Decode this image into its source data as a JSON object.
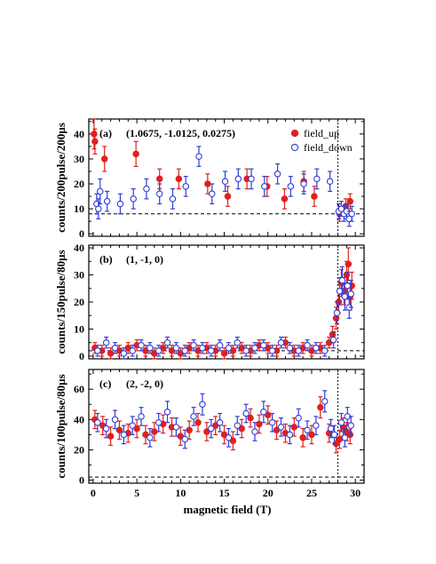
{
  "figure": {
    "xlabel": "magnetic field (T)",
    "legend": {
      "placement": "top-right of panel (a)",
      "entries": [
        {
          "name": "field_up",
          "marker": "filled-circle",
          "color": "#e0201e"
        },
        {
          "name": "field_down",
          "marker": "open-circle",
          "color": "#2e3fd8"
        }
      ]
    },
    "colors": {
      "up": "#e0201e",
      "down": "#2e3fd8",
      "frame": "#000000"
    }
  },
  "chart_data": [
    {
      "type": "scatter",
      "panel_label": "(a)",
      "hkl": "(1.0675, -1.0125, 0.0275)",
      "ylabel": "counts/200pulse/200µs",
      "xlim": [
        -0.5,
        31
      ],
      "ylim": [
        -1,
        46
      ],
      "x_ticks": [
        0,
        5,
        10,
        15,
        20,
        25,
        30
      ],
      "y_ticks": [
        0,
        10,
        20,
        30,
        40
      ],
      "background_level": 8,
      "vertical_marker_x": 28,
      "series": [
        {
          "name": "field_up",
          "filled": true,
          "x": [
            0.1,
            0.2,
            1.3,
            4.9,
            7.6,
            9.8,
            13.1,
            15.4,
            17.6,
            19.9,
            21.9,
            24.1,
            25.3,
            28.2,
            28.9,
            29.4
          ],
          "y": [
            40,
            37,
            30,
            32,
            22,
            22,
            20,
            15,
            22,
            19,
            14,
            21,
            15,
            8,
            11,
            13
          ],
          "err": [
            6,
            5,
            5,
            5,
            4,
            4,
            4,
            4,
            4,
            4,
            4,
            4,
            4,
            3,
            3,
            3
          ]
        },
        {
          "name": "field_down",
          "filled": false,
          "x": [
            0.4,
            0.6,
            0.8,
            1.6,
            3.1,
            4.6,
            6.1,
            7.6,
            9.1,
            10.6,
            12.1,
            13.6,
            15.1,
            16.6,
            18.1,
            19.6,
            21.1,
            22.6,
            24.1,
            25.6,
            27.1,
            28.1,
            28.4,
            28.7,
            29.0,
            29.3,
            29.6
          ],
          "y": [
            12,
            10,
            17,
            13,
            12,
            14,
            18,
            16,
            14,
            19,
            31,
            16,
            21,
            22,
            22,
            19,
            24,
            19,
            20,
            22,
            21,
            9,
            10,
            8,
            9,
            6,
            8
          ],
          "err": [
            4,
            4,
            5,
            4,
            4,
            4,
            4,
            4,
            4,
            4,
            4,
            4,
            4,
            4,
            4,
            4,
            4,
            4,
            4,
            4,
            4,
            3,
            3,
            3,
            3,
            3,
            3
          ]
        }
      ]
    },
    {
      "type": "scatter",
      "panel_label": "(b)",
      "hkl": "(1, -1, 0)",
      "ylabel": "counts/150pulse/80µs",
      "xlim": [
        -0.5,
        31
      ],
      "ylim": [
        -1,
        41
      ],
      "x_ticks": [
        0,
        5,
        10,
        15,
        20,
        25,
        30
      ],
      "y_ticks": [
        0,
        10,
        20,
        30,
        40
      ],
      "background_level": 2,
      "vertical_marker_x": 28,
      "series": [
        {
          "name": "field_up",
          "filled": true,
          "x": [
            0.2,
            1.0,
            2.0,
            3.0,
            4.0,
            5.0,
            6.0,
            7.0,
            8.0,
            9.0,
            10.0,
            11.0,
            12.0,
            13.0,
            14.0,
            15.0,
            16.0,
            17.0,
            18.0,
            19.0,
            20.0,
            21.0,
            22.0,
            23.0,
            24.0,
            25.0,
            26.0,
            27.0,
            27.4,
            27.8,
            28.1,
            28.4,
            28.7,
            29.0,
            29.2,
            29.4,
            29.6
          ],
          "y": [
            3,
            2,
            1,
            2,
            3,
            4,
            2,
            1,
            3,
            2,
            1,
            3,
            2,
            3,
            2,
            1,
            2,
            3,
            2,
            4,
            3,
            2,
            5,
            2,
            3,
            2,
            3,
            5,
            8,
            14,
            20,
            27,
            24,
            30,
            34,
            22,
            26
          ],
          "err": [
            2,
            2,
            2,
            2,
            2,
            2,
            2,
            2,
            2,
            2,
            2,
            2,
            2,
            2,
            2,
            2,
            2,
            2,
            2,
            2,
            2,
            2,
            2,
            2,
            2,
            2,
            2,
            2,
            3,
            4,
            4,
            5,
            5,
            5,
            6,
            5,
            5
          ]
        },
        {
          "name": "field_down",
          "filled": false,
          "x": [
            0.5,
            1.5,
            2.5,
            3.5,
            4.5,
            5.5,
            6.5,
            7.5,
            8.5,
            9.5,
            10.5,
            11.5,
            12.5,
            13.5,
            14.5,
            15.5,
            16.5,
            17.5,
            18.5,
            19.5,
            20.5,
            21.5,
            22.5,
            23.5,
            24.5,
            25.5,
            26.5,
            27.5,
            27.9,
            28.2,
            28.5,
            28.8,
            29.1,
            29.3,
            29.5
          ],
          "y": [
            2,
            5,
            3,
            1,
            2,
            4,
            3,
            2,
            5,
            3,
            2,
            4,
            3,
            2,
            4,
            3,
            5,
            2,
            3,
            4,
            2,
            5,
            3,
            2,
            4,
            3,
            2,
            6,
            16,
            24,
            28,
            22,
            26,
            18,
            23
          ],
          "err": [
            2,
            2,
            2,
            2,
            2,
            2,
            2,
            2,
            2,
            2,
            2,
            2,
            2,
            2,
            2,
            2,
            2,
            2,
            2,
            2,
            2,
            2,
            2,
            2,
            2,
            2,
            2,
            3,
            4,
            5,
            5,
            5,
            5,
            4,
            5
          ]
        }
      ]
    },
    {
      "type": "scatter",
      "panel_label": "(c)",
      "hkl": "(2, -2, 0)",
      "ylabel": "counts/100pulse/80µs",
      "xlim": [
        -0.5,
        31
      ],
      "ylim": [
        -2,
        73
      ],
      "x_ticks": [
        0,
        5,
        10,
        15,
        20,
        25,
        30
      ],
      "y_ticks": [
        0,
        20,
        40,
        60
      ],
      "background_level": 2,
      "vertical_marker_x": 28,
      "series": [
        {
          "name": "field_up",
          "filled": true,
          "x": [
            0.2,
            1.1,
            2.0,
            3.0,
            4.0,
            5.0,
            6.0,
            7.0,
            8.0,
            9.0,
            10.0,
            11.0,
            12.0,
            13.0,
            14.0,
            15.0,
            16.0,
            17.0,
            18.0,
            19.0,
            20.0,
            21.0,
            22.0,
            23.0,
            24.0,
            25.0,
            26.0,
            27.0,
            27.8,
            28.2,
            28.6,
            29.0,
            29.4
          ],
          "y": [
            40,
            36,
            29,
            33,
            31,
            34,
            30,
            32,
            37,
            35,
            29,
            33,
            38,
            32,
            36,
            30,
            26,
            34,
            41,
            37,
            43,
            33,
            31,
            35,
            28,
            30,
            48,
            31,
            24,
            27,
            35,
            32,
            30
          ],
          "err": [
            6,
            6,
            6,
            6,
            6,
            6,
            6,
            6,
            6,
            6,
            6,
            6,
            6,
            6,
            6,
            6,
            6,
            6,
            6,
            6,
            6,
            6,
            6,
            6,
            6,
            6,
            7,
            6,
            6,
            6,
            6,
            6,
            6
          ]
        },
        {
          "name": "field_down",
          "filled": false,
          "x": [
            0.5,
            1.5,
            2.5,
            3.5,
            4.5,
            5.5,
            6.5,
            7.5,
            8.5,
            9.5,
            10.5,
            11.5,
            12.5,
            13.5,
            14.5,
            15.5,
            16.5,
            17.5,
            18.5,
            19.5,
            20.5,
            21.5,
            22.5,
            23.5,
            24.5,
            25.5,
            26.5,
            27.2,
            27.6,
            28.4,
            28.8,
            29.1,
            29.5
          ],
          "y": [
            38,
            34,
            40,
            30,
            36,
            42,
            28,
            38,
            45,
            35,
            27,
            42,
            50,
            34,
            38,
            28,
            36,
            44,
            32,
            45,
            38,
            35,
            30,
            41,
            33,
            36,
            52,
            34,
            30,
            38,
            28,
            42,
            36
          ],
          "err": [
            6,
            6,
            6,
            6,
            6,
            6,
            6,
            6,
            7,
            6,
            6,
            6,
            7,
            6,
            6,
            6,
            6,
            6,
            6,
            7,
            6,
            6,
            6,
            6,
            6,
            6,
            7,
            6,
            6,
            6,
            6,
            6,
            6
          ]
        }
      ]
    }
  ]
}
